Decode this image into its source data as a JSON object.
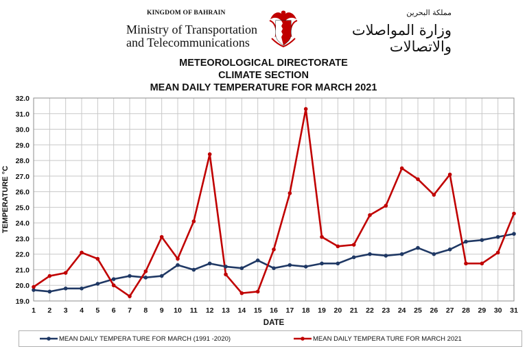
{
  "header": {
    "kingdom": "KINGDOM OF BAHRAIN",
    "ministry_line1": "Ministry of Transportation",
    "ministry_line2": "and Telecommunications",
    "arabic_line1": "مملكة البحرين",
    "arabic_line2": "وزارة المواصلات والاتصالات",
    "emblem_icon": "bahrain-emblem-icon"
  },
  "titles": {
    "line1": "METEOROLOGICAL DIRECTORATE",
    "line2": "CLIMATE SECTION",
    "line3": "MEAN DAILY TEMPERATURE  FOR MARCH 2021"
  },
  "chart_data": {
    "type": "line",
    "xlabel": "DATE",
    "ylabel": "TEMPERATURE °C",
    "x": [
      1,
      2,
      3,
      4,
      5,
      6,
      7,
      8,
      9,
      10,
      11,
      12,
      13,
      14,
      15,
      16,
      17,
      18,
      19,
      20,
      21,
      22,
      23,
      24,
      25,
      26,
      27,
      28,
      29,
      30,
      31
    ],
    "ylim": [
      19.0,
      32.0
    ],
    "yticks": [
      "19.0",
      "20.0",
      "21.0",
      "22.0",
      "23.0",
      "24.0",
      "25.0",
      "26.0",
      "27.0",
      "28.0",
      "29.0",
      "30.0",
      "31.0",
      "32.0"
    ],
    "grid": true,
    "legend_position": "bottom",
    "series": [
      {
        "name": "MEAN DAILY TEMPERA TURE FOR MARCH (1991 -2020)",
        "color": "#1f3864",
        "values": [
          19.7,
          19.6,
          19.8,
          19.8,
          20.1,
          20.4,
          20.6,
          20.5,
          20.6,
          21.3,
          21.0,
          21.4,
          21.2,
          21.1,
          21.6,
          21.1,
          21.3,
          21.2,
          21.4,
          21.4,
          21.8,
          22.0,
          21.9,
          22.0,
          22.4,
          22.0,
          22.3,
          22.8,
          22.9,
          23.1,
          23.3
        ]
      },
      {
        "name": "MEAN DAILY TEMPERA TURE FOR MARCH 2021",
        "color": "#c00000",
        "values": [
          19.9,
          20.6,
          20.8,
          22.1,
          21.7,
          20.0,
          19.3,
          20.9,
          23.1,
          21.7,
          24.1,
          28.4,
          20.7,
          19.5,
          19.6,
          22.3,
          25.9,
          31.3,
          23.1,
          22.5,
          22.6,
          24.5,
          25.1,
          27.5,
          26.8,
          25.8,
          27.1,
          21.4,
          21.4,
          22.1,
          24.6
        ]
      }
    ]
  }
}
